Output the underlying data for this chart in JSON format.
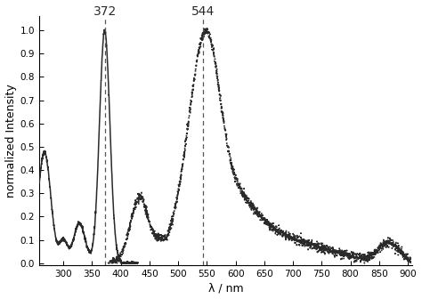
{
  "title": "",
  "xlabel": "λ / nm",
  "ylabel": "normalized Intensity",
  "xlim": [
    258,
    908
  ],
  "ylim": [
    -0.01,
    1.06
  ],
  "xticks": [
    300,
    350,
    400,
    450,
    500,
    550,
    600,
    650,
    700,
    750,
    800,
    850,
    900
  ],
  "yticks": [
    0.0,
    0.1,
    0.2,
    0.3,
    0.4,
    0.5,
    0.6,
    0.7,
    0.8,
    0.9,
    1.0
  ],
  "vline1": 372,
  "vline2": 544,
  "label1": "372",
  "label2": "544",
  "background_color": "#ffffff",
  "line_color": "#2a2a2a",
  "dot_color": "#2a2a2a",
  "vline_color": "#555555"
}
